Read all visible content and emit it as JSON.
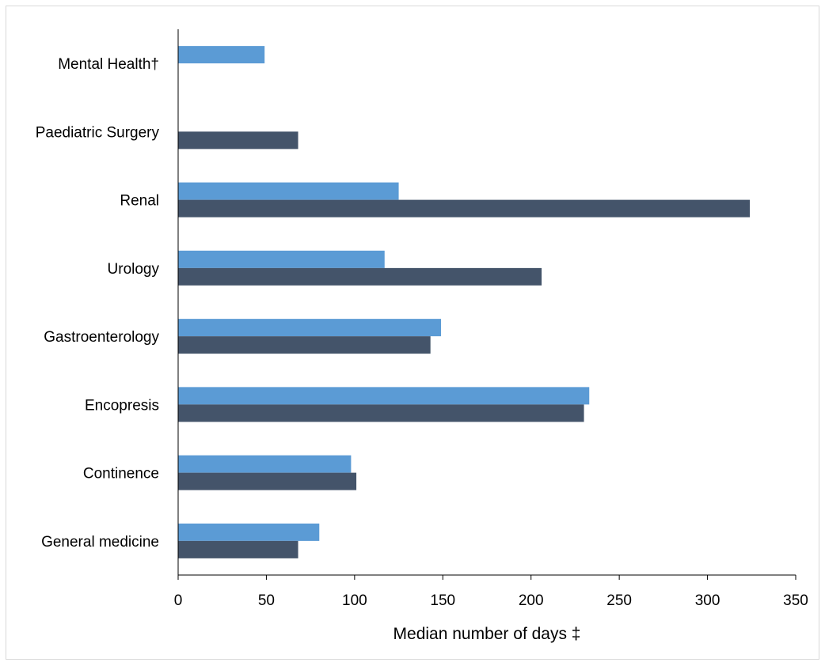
{
  "chart_data": {
    "type": "bar",
    "orientation": "horizontal",
    "categories": [
      "General medicine",
      "Continence",
      "Encopresis",
      "Gastroenterology",
      "Urology",
      "Renal",
      "Paediatric Surgery",
      "Mental Health†"
    ],
    "series": [
      {
        "color": "#5b9bd5",
        "values": [
          80,
          98,
          233,
          149,
          117,
          125,
          null,
          49
        ]
      },
      {
        "color": "#44546a",
        "values": [
          68,
          101,
          230,
          143,
          206,
          324,
          68,
          null
        ]
      }
    ],
    "title": "",
    "xlabel": "Median number of days ‡",
    "ylabel": "",
    "xlim": [
      0,
      350
    ],
    "xticks": [
      0,
      50,
      100,
      150,
      200,
      250,
      300,
      350
    ],
    "grid": false,
    "legend": "none"
  }
}
